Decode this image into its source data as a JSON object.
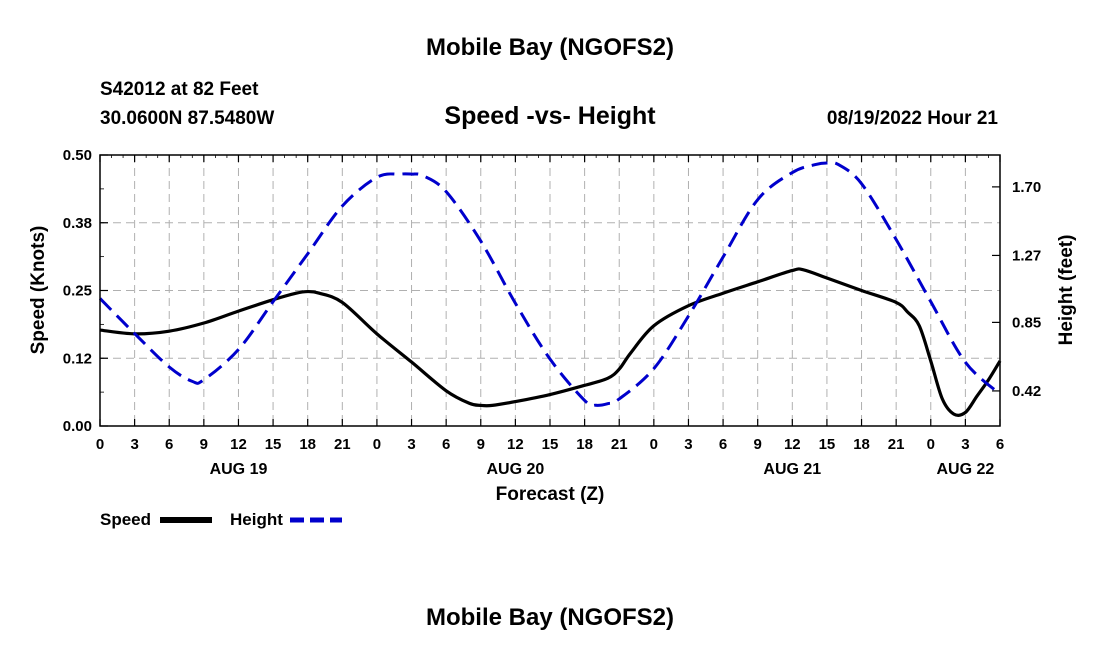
{
  "chart_data": {
    "type": "line",
    "title": "Mobile Bay (NGOFS2)",
    "footer_title": "Mobile Bay (NGOFS2)",
    "subtitle": "Speed -vs- Height",
    "station_line1": "S42012 at 82 Feet",
    "station_line2": "30.0600N  87.5480W",
    "datetime": "08/19/2022 Hour 21",
    "xlabel": "Forecast (Z)",
    "ylabel": "Speed (Knots)",
    "y2label": "Height (feet)",
    "xlim": [
      0,
      78
    ],
    "ylim": [
      0,
      0.5
    ],
    "y2lim": [
      0.2,
      1.9
    ],
    "grid": true,
    "x_ticks": [
      {
        "x": 0,
        "label": "0"
      },
      {
        "x": 3,
        "label": "3"
      },
      {
        "x": 6,
        "label": "6"
      },
      {
        "x": 9,
        "label": "9"
      },
      {
        "x": 12,
        "label": "12"
      },
      {
        "x": 15,
        "label": "15"
      },
      {
        "x": 18,
        "label": "18"
      },
      {
        "x": 21,
        "label": "21"
      },
      {
        "x": 24,
        "label": "0"
      },
      {
        "x": 27,
        "label": "3"
      },
      {
        "x": 30,
        "label": "6"
      },
      {
        "x": 33,
        "label": "9"
      },
      {
        "x": 36,
        "label": "12"
      },
      {
        "x": 39,
        "label": "15"
      },
      {
        "x": 42,
        "label": "18"
      },
      {
        "x": 45,
        "label": "21"
      },
      {
        "x": 48,
        "label": "0"
      },
      {
        "x": 51,
        "label": "3"
      },
      {
        "x": 54,
        "label": "6"
      },
      {
        "x": 57,
        "label": "9"
      },
      {
        "x": 60,
        "label": "12"
      },
      {
        "x": 63,
        "label": "15"
      },
      {
        "x": 66,
        "label": "18"
      },
      {
        "x": 69,
        "label": "21"
      },
      {
        "x": 72,
        "label": "0"
      },
      {
        "x": 75,
        "label": "3"
      },
      {
        "x": 78,
        "label": "6"
      }
    ],
    "date_labels": [
      {
        "x": 12,
        "label": "AUG 19"
      },
      {
        "x": 36,
        "label": "AUG 20"
      },
      {
        "x": 60,
        "label": "AUG 21"
      },
      {
        "x": 75,
        "label": "AUG 22"
      }
    ],
    "y_ticks": [
      {
        "value": 0.0,
        "label": "0.00"
      },
      {
        "value": 0.125,
        "label": "0.12"
      },
      {
        "value": 0.25,
        "label": "0.25"
      },
      {
        "value": 0.375,
        "label": "0.38"
      },
      {
        "value": 0.5,
        "label": "0.50"
      }
    ],
    "y2_ticks": [
      {
        "value": 0.42,
        "label": "0.42"
      },
      {
        "value": 0.85,
        "label": "0.85"
      },
      {
        "value": 1.27,
        "label": "1.27"
      },
      {
        "value": 1.7,
        "label": "1.70"
      }
    ],
    "series": [
      {
        "name": "Speed",
        "axis": "left",
        "color": "#000000",
        "style": "solid",
        "x": [
          0,
          3,
          6,
          9,
          12,
          15,
          17,
          18,
          19,
          21,
          24,
          27,
          30,
          32,
          33,
          34,
          36,
          39,
          42,
          44,
          45,
          46,
          48,
          51,
          54,
          57,
          60,
          61,
          63,
          66,
          69,
          70,
          71,
          72,
          73,
          74,
          75,
          76,
          77,
          78
        ],
        "values": [
          0.177,
          0.17,
          0.175,
          0.19,
          0.212,
          0.233,
          0.245,
          0.248,
          0.245,
          0.228,
          0.17,
          0.118,
          0.065,
          0.042,
          0.038,
          0.038,
          0.045,
          0.058,
          0.075,
          0.088,
          0.105,
          0.135,
          0.185,
          0.222,
          0.245,
          0.266,
          0.287,
          0.288,
          0.273,
          0.25,
          0.228,
          0.21,
          0.185,
          0.12,
          0.05,
          0.022,
          0.025,
          0.055,
          0.085,
          0.12
        ]
      },
      {
        "name": "Height",
        "axis": "right",
        "color": "#0000cc",
        "style": "dashed",
        "x": [
          0,
          3,
          6,
          8,
          9,
          12,
          15,
          18,
          21,
          24,
          26,
          27,
          28,
          30,
          33,
          36,
          39,
          42,
          43,
          44,
          45,
          48,
          51,
          54,
          57,
          60,
          62,
          63,
          64,
          66,
          69,
          72,
          75,
          78
        ],
        "values": [
          1.0,
          0.78,
          0.57,
          0.48,
          0.49,
          0.68,
          0.98,
          1.28,
          1.58,
          1.76,
          1.78,
          1.78,
          1.77,
          1.67,
          1.36,
          0.97,
          0.62,
          0.36,
          0.33,
          0.34,
          0.37,
          0.56,
          0.89,
          1.26,
          1.62,
          1.79,
          1.84,
          1.85,
          1.84,
          1.72,
          1.37,
          0.98,
          0.6,
          0.4
        ]
      }
    ],
    "legend": {
      "placement": "bottom-left",
      "entries": [
        {
          "label": "Speed",
          "color": "#000000",
          "style": "solid"
        },
        {
          "label": "Height",
          "color": "#0000cc",
          "style": "dashed"
        }
      ]
    }
  }
}
